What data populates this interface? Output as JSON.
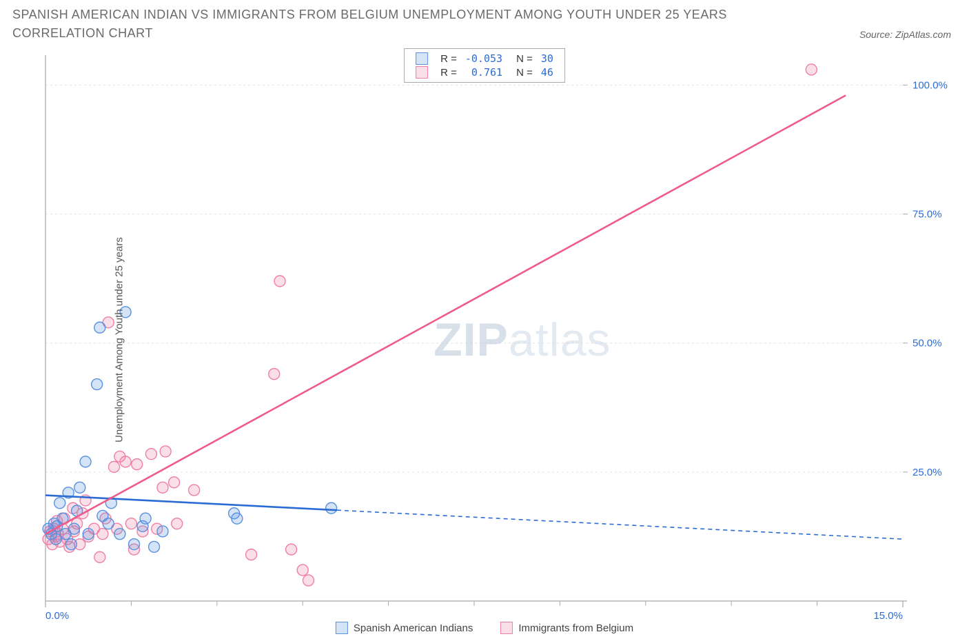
{
  "title": "SPANISH AMERICAN INDIAN VS IMMIGRANTS FROM BELGIUM UNEMPLOYMENT AMONG YOUTH UNDER 25 YEARS CORRELATION CHART",
  "source_label": "Source: ZipAtlas.com",
  "y_axis_label": "Unemployment Among Youth under 25 years",
  "watermark_bold": "ZIP",
  "watermark_rest": "atlas",
  "chart": {
    "type": "scatter",
    "background_color": "#ffffff",
    "grid_color": "#e2e2e2",
    "axis_color": "#a7a7a7",
    "tick_label_color": "#2b6cd4",
    "tick_label_fontsize": 15,
    "x_range": [
      0,
      15
    ],
    "y_range": [
      0,
      105
    ],
    "x_ticks": [
      0,
      15
    ],
    "x_tick_labels": [
      "0.0%",
      "15.0%"
    ],
    "x_minor_ticks": [
      1.5,
      3,
      4.5,
      6,
      7.5,
      9,
      10.5,
      12,
      13.5
    ],
    "y_ticks": [
      25,
      50,
      75,
      100
    ],
    "y_tick_labels": [
      "25.0%",
      "50.0%",
      "75.0%",
      "100.0%"
    ],
    "marker_radius": 8,
    "marker_stroke_width": 1.4,
    "marker_fill_opacity": 0.25,
    "trend_line_width": 2.6,
    "trend_dash": "6,5"
  },
  "series": [
    {
      "key": "blue",
      "name": "Spanish American Indians",
      "color_stroke": "#5891e0",
      "color_fill": "#5891e0",
      "trend_color": "#2b6cd4",
      "r_value": "-0.053",
      "n_value": "30",
      "trend": {
        "x1": 0,
        "y1": 20.5,
        "x2": 15,
        "y2": 12.0,
        "solid_until_x": 5.1
      },
      "points": [
        [
          0.05,
          14
        ],
        [
          0.1,
          13
        ],
        [
          0.15,
          15
        ],
        [
          0.18,
          12
        ],
        [
          0.2,
          14.5
        ],
        [
          0.25,
          19
        ],
        [
          0.3,
          16
        ],
        [
          0.35,
          13
        ],
        [
          0.4,
          21
        ],
        [
          0.45,
          11
        ],
        [
          0.5,
          14
        ],
        [
          0.55,
          17.5
        ],
        [
          0.6,
          22
        ],
        [
          0.7,
          27
        ],
        [
          0.75,
          13
        ],
        [
          0.9,
          42
        ],
        [
          0.95,
          53
        ],
        [
          1.0,
          16.5
        ],
        [
          1.1,
          15
        ],
        [
          1.15,
          19
        ],
        [
          1.3,
          13
        ],
        [
          1.4,
          56
        ],
        [
          1.55,
          11
        ],
        [
          1.7,
          14.5
        ],
        [
          1.75,
          16
        ],
        [
          1.9,
          10.5
        ],
        [
          2.05,
          13.5
        ],
        [
          3.3,
          17
        ],
        [
          3.35,
          16
        ],
        [
          5.0,
          18
        ]
      ]
    },
    {
      "key": "pink",
      "name": "Immigrants from Belgium",
      "color_stroke": "#ef7fa3",
      "color_fill": "#ef7fa3",
      "trend_color": "#ef5b8a",
      "r_value": "0.761",
      "n_value": "46",
      "trend": {
        "x1": 0,
        "y1": 13,
        "x2": 14.0,
        "y2": 98,
        "solid_until_x": 14.0
      },
      "points": [
        [
          0.05,
          12
        ],
        [
          0.08,
          13.5
        ],
        [
          0.12,
          11
        ],
        [
          0.15,
          14
        ],
        [
          0.18,
          12.5
        ],
        [
          0.2,
          15.5
        ],
        [
          0.22,
          13
        ],
        [
          0.25,
          11.5
        ],
        [
          0.3,
          14
        ],
        [
          0.33,
          16
        ],
        [
          0.38,
          12
        ],
        [
          0.42,
          10.5
        ],
        [
          0.48,
          18
        ],
        [
          0.5,
          13.5
        ],
        [
          0.55,
          15
        ],
        [
          0.6,
          11
        ],
        [
          0.65,
          17
        ],
        [
          0.7,
          19.5
        ],
        [
          0.75,
          12.5
        ],
        [
          0.85,
          14
        ],
        [
          0.95,
          8.5
        ],
        [
          1.0,
          13
        ],
        [
          1.05,
          16
        ],
        [
          1.1,
          54
        ],
        [
          1.2,
          26
        ],
        [
          1.25,
          14
        ],
        [
          1.3,
          28
        ],
        [
          1.4,
          27
        ],
        [
          1.5,
          15
        ],
        [
          1.55,
          10
        ],
        [
          1.6,
          26.5
        ],
        [
          1.7,
          13.5
        ],
        [
          1.85,
          28.5
        ],
        [
          1.95,
          14
        ],
        [
          2.05,
          22
        ],
        [
          2.1,
          29
        ],
        [
          2.25,
          23
        ],
        [
          2.3,
          15
        ],
        [
          2.6,
          21.5
        ],
        [
          3.6,
          9
        ],
        [
          4.0,
          44
        ],
        [
          4.1,
          62
        ],
        [
          4.3,
          10
        ],
        [
          4.5,
          6
        ],
        [
          4.6,
          4
        ],
        [
          13.4,
          103
        ]
      ]
    }
  ],
  "legend_top": {
    "r_label": "R =",
    "n_label": "N ="
  }
}
